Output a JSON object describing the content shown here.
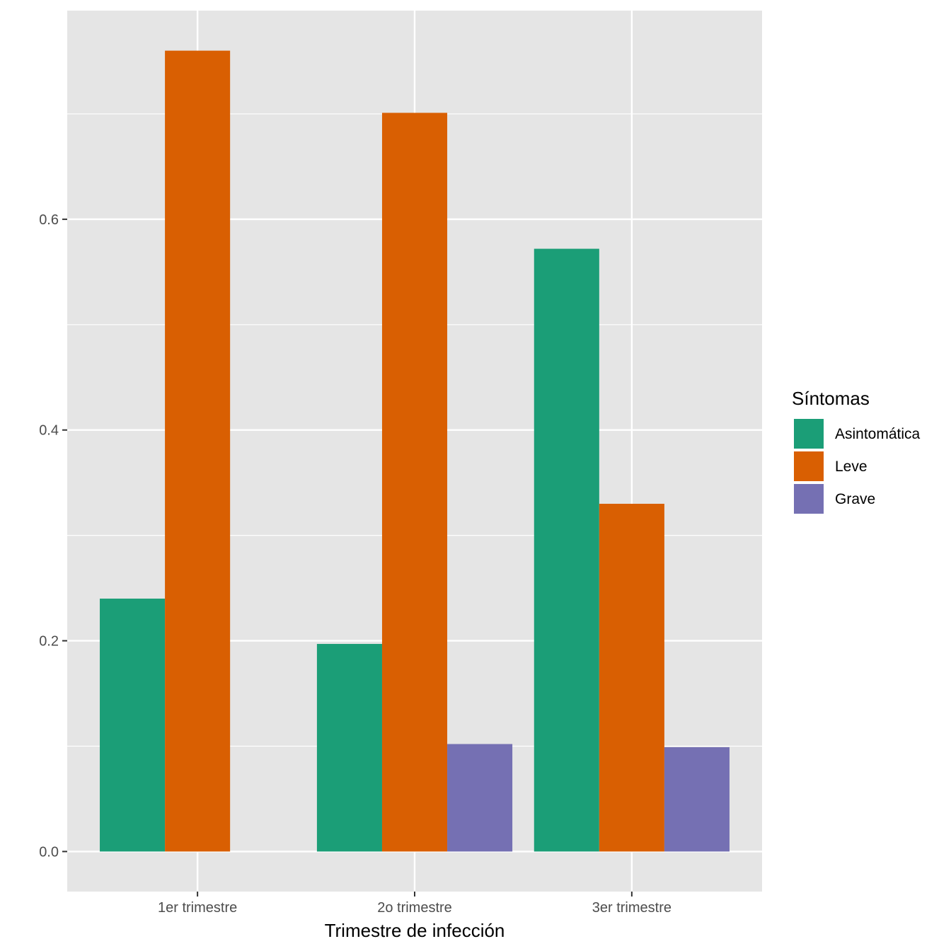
{
  "chart_data": {
    "type": "bar",
    "title": "",
    "xlabel": "Trimestre de infección",
    "ylabel": "",
    "categories": [
      "1er trimestre",
      "2o trimestre",
      "3er trimestre"
    ],
    "series": [
      {
        "name": "Asintomática",
        "color": "#1b9e77",
        "values": [
          0.24,
          0.197,
          0.572
        ]
      },
      {
        "name": "Leve",
        "color": "#d95f02",
        "values": [
          0.76,
          0.701,
          0.33
        ]
      },
      {
        "name": "Grave",
        "color": "#7570b3",
        "values": [
          0,
          0.102,
          0.099
        ]
      }
    ],
    "y_ticks": [
      "0.0",
      "0.2",
      "0.4",
      "0.6"
    ],
    "ylim": [
      -0.038,
      0.798
    ],
    "grid": true,
    "legend": {
      "title": "Síntomas",
      "position": "right"
    }
  }
}
